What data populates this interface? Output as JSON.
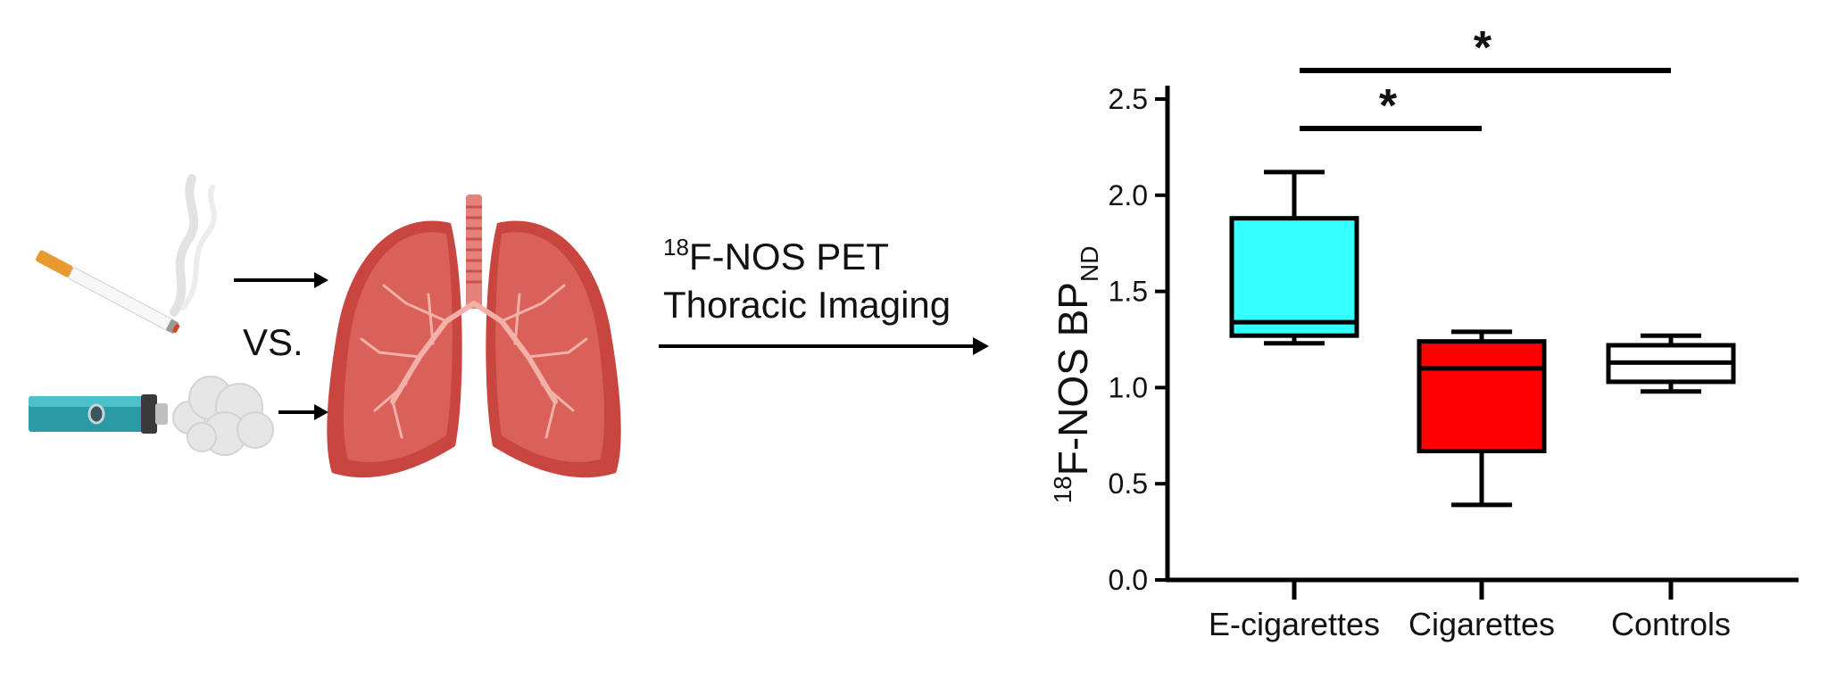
{
  "left_panel": {
    "comparison_label": "VS.",
    "process_label_sup": "18",
    "process_label_line1": "F-NOS PET",
    "process_label_line2": "Thoracic Imaging",
    "icons": [
      "cigarette-icon",
      "e-cigarette-icon",
      "lungs-icon"
    ]
  },
  "chart_data": {
    "type": "box",
    "categories": [
      "E-cigarettes",
      "Cigarettes",
      "Controls"
    ],
    "ylabel_sup": "18",
    "ylabel_main": "F-NOS BP",
    "ylabel_sub": "ND",
    "ylim": [
      0,
      2.5
    ],
    "yticks": [
      "0.0",
      "0.5",
      "1.0",
      "1.5",
      "2.0",
      "2.5"
    ],
    "boxes": [
      {
        "name": "E-cigarettes",
        "min": 1.23,
        "q1": 1.27,
        "median": 1.34,
        "q3": 1.88,
        "max": 2.12,
        "color": "#33ffff"
      },
      {
        "name": "Cigarettes",
        "min": 0.39,
        "q1": 0.67,
        "median": 1.1,
        "q3": 1.24,
        "max": 1.29,
        "color": "#ff0000"
      },
      {
        "name": "Controls",
        "min": 0.98,
        "q1": 1.03,
        "median": 1.13,
        "q3": 1.22,
        "max": 1.27,
        "color": "#ffffff"
      }
    ],
    "significance": [
      {
        "from": "E-cigarettes",
        "to": "Cigarettes",
        "label": "*"
      },
      {
        "from": "E-cigarettes",
        "to": "Controls",
        "label": "*"
      }
    ],
    "grid": false,
    "legend": "none"
  }
}
